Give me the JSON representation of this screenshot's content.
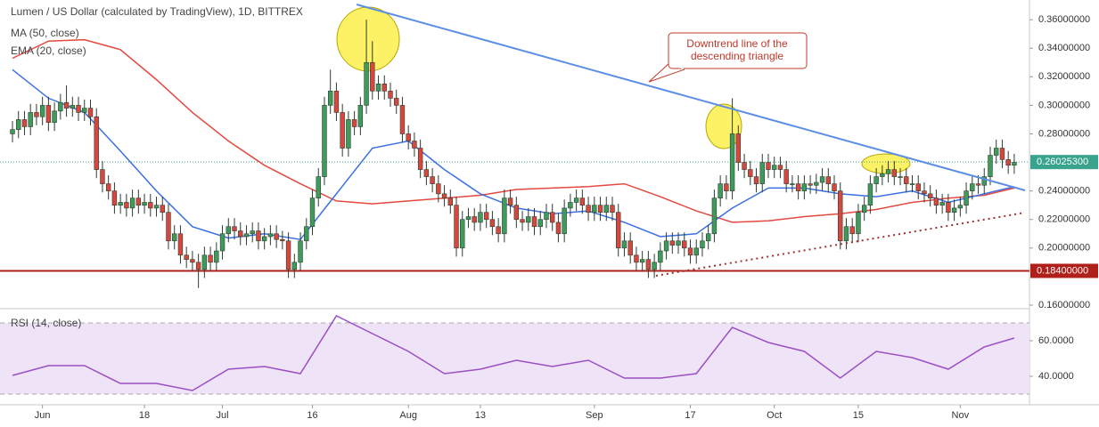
{
  "chart_data": [
    {
      "type": "candlestick",
      "title": "Lumen / US Dollar (calculated by TradingView), 1D, BITTREX",
      "categories": [
        null,
        null,
        null,
        null,
        null,
        "Jun",
        null,
        null,
        null,
        null,
        null,
        null,
        null,
        null,
        null,
        null,
        null,
        null,
        null,
        null,
        null,
        null,
        "18",
        null,
        null,
        null,
        null,
        null,
        null,
        null,
        null,
        null,
        null,
        null,
        null,
        "Jul",
        null,
        null,
        null,
        null,
        null,
        null,
        null,
        null,
        null,
        null,
        null,
        null,
        null,
        null,
        "16",
        null,
        null,
        null,
        null,
        null,
        null,
        null,
        null,
        null,
        null,
        null,
        null,
        null,
        null,
        null,
        "Aug",
        null,
        null,
        null,
        null,
        null,
        null,
        null,
        null,
        null,
        null,
        null,
        "13",
        null,
        null,
        null,
        null,
        null,
        null,
        null,
        null,
        null,
        null,
        null,
        null,
        null,
        null,
        null,
        null,
        null,
        null,
        "Sep",
        null,
        null,
        null,
        null,
        null,
        null,
        null,
        null,
        null,
        null,
        null,
        null,
        null,
        null,
        null,
        "17",
        null,
        null,
        null,
        null,
        null,
        null,
        null,
        null,
        null,
        null,
        null,
        null,
        null,
        "Oct",
        null,
        null,
        null,
        null,
        null,
        null,
        null,
        null,
        null,
        null,
        null,
        null,
        null,
        "15",
        null,
        null,
        null,
        null,
        null,
        null,
        null,
        null,
        null,
        null,
        null,
        null,
        null,
        null,
        null,
        null,
        "Nov",
        null,
        null,
        null,
        null,
        null,
        null,
        null,
        null,
        null
      ],
      "open": [
        0.28,
        0.283,
        0.29,
        0.285,
        0.295,
        0.292,
        0.3,
        0.288,
        0.296,
        0.302,
        0.298,
        0.3,
        0.295,
        0.298,
        0.292,
        0.255,
        0.245,
        0.24,
        0.23,
        0.232,
        0.228,
        0.235,
        0.23,
        0.232,
        0.228,
        0.23,
        0.225,
        0.205,
        0.21,
        0.195,
        0.192,
        0.19,
        0.185,
        0.195,
        0.19,
        0.198,
        0.21,
        0.215,
        0.212,
        0.208,
        0.21,
        0.212,
        0.205,
        0.208,
        0.21,
        0.206,
        0.205,
        0.185,
        0.19,
        0.205,
        0.215,
        0.235,
        0.25,
        0.3,
        0.31,
        0.295,
        0.27,
        0.29,
        0.285,
        0.3,
        0.33,
        0.31,
        0.315,
        0.31,
        0.305,
        0.3,
        0.28,
        0.275,
        0.27,
        0.255,
        0.25,
        0.245,
        0.238,
        0.235,
        0.23,
        0.2,
        0.22,
        0.222,
        0.218,
        0.225,
        0.22,
        0.215,
        0.21,
        0.235,
        0.23,
        0.22,
        0.218,
        0.222,
        0.215,
        0.22,
        0.225,
        0.218,
        0.21,
        0.228,
        0.232,
        0.235,
        0.23,
        0.225,
        0.23,
        0.225,
        0.23,
        0.225,
        0.2,
        0.205,
        0.195,
        0.19,
        0.192,
        0.185,
        0.19,
        0.198,
        0.205,
        0.202,
        0.205,
        0.2,
        0.195,
        0.2,
        0.205,
        0.21,
        0.235,
        0.245,
        0.24,
        0.28,
        0.26,
        0.255,
        0.25,
        0.245,
        0.26,
        0.255,
        0.258,
        0.255,
        0.245,
        0.245,
        0.24,
        0.245,
        0.244,
        0.246,
        0.25,
        0.245,
        0.24,
        0.205,
        0.215,
        0.21,
        0.225,
        0.23,
        0.245,
        0.25,
        0.252,
        0.255,
        0.25,
        0.25,
        0.245,
        0.245,
        0.24,
        0.238,
        0.235,
        0.23,
        0.232,
        0.225,
        0.228,
        0.23,
        0.24,
        0.245,
        0.244,
        0.25,
        0.265,
        0.27,
        0.262,
        0.258
      ],
      "high": [
        0.289,
        0.296,
        0.296,
        0.301,
        0.301,
        0.306,
        0.306,
        0.302,
        0.308,
        0.314,
        0.306,
        0.306,
        0.304,
        0.304,
        0.298,
        0.261,
        0.251,
        0.246,
        0.238,
        0.238,
        0.241,
        0.241,
        0.238,
        0.238,
        0.236,
        0.236,
        0.231,
        0.216,
        0.216,
        0.201,
        0.198,
        0.196,
        0.201,
        0.201,
        0.204,
        0.216,
        0.221,
        0.221,
        0.218,
        0.216,
        0.218,
        0.218,
        0.214,
        0.216,
        0.216,
        0.212,
        0.211,
        0.196,
        0.211,
        0.221,
        0.241,
        0.256,
        0.306,
        0.325,
        0.316,
        0.301,
        0.296,
        0.296,
        0.306,
        0.36,
        0.345,
        0.321,
        0.321,
        0.316,
        0.311,
        0.306,
        0.286,
        0.281,
        0.276,
        0.261,
        0.256,
        0.251,
        0.244,
        0.241,
        0.236,
        0.226,
        0.228,
        0.228,
        0.231,
        0.231,
        0.226,
        0.221,
        0.241,
        0.241,
        0.236,
        0.226,
        0.228,
        0.228,
        0.226,
        0.231,
        0.231,
        0.224,
        0.234,
        0.238,
        0.241,
        0.241,
        0.236,
        0.236,
        0.236,
        0.236,
        0.236,
        0.231,
        0.211,
        0.211,
        0.201,
        0.198,
        0.198,
        0.196,
        0.204,
        0.211,
        0.211,
        0.211,
        0.211,
        0.206,
        0.206,
        0.211,
        0.216,
        0.241,
        0.251,
        0.251,
        0.305,
        0.286,
        0.266,
        0.261,
        0.256,
        0.266,
        0.266,
        0.264,
        0.264,
        0.261,
        0.251,
        0.251,
        0.251,
        0.251,
        0.252,
        0.256,
        0.256,
        0.251,
        0.246,
        0.221,
        0.221,
        0.231,
        0.236,
        0.251,
        0.256,
        0.258,
        0.261,
        0.261,
        0.256,
        0.256,
        0.251,
        0.251,
        0.246,
        0.244,
        0.241,
        0.238,
        0.238,
        0.234,
        0.236,
        0.246,
        0.251,
        0.251,
        0.256,
        0.271,
        0.276,
        0.276,
        0.268,
        0.266
      ],
      "low": [
        0.274,
        0.277,
        0.279,
        0.279,
        0.286,
        0.286,
        0.282,
        0.282,
        0.29,
        0.292,
        0.292,
        0.289,
        0.289,
        0.286,
        0.249,
        0.239,
        0.234,
        0.224,
        0.224,
        0.222,
        0.222,
        0.224,
        0.224,
        0.222,
        0.222,
        0.219,
        0.199,
        0.199,
        0.189,
        0.186,
        0.184,
        0.172,
        0.179,
        0.184,
        0.184,
        0.192,
        0.204,
        0.206,
        0.202,
        0.202,
        0.204,
        0.199,
        0.199,
        0.202,
        0.2,
        0.199,
        0.179,
        0.179,
        0.184,
        0.199,
        0.209,
        0.229,
        0.244,
        0.294,
        0.289,
        0.264,
        0.264,
        0.279,
        0.279,
        0.294,
        0.304,
        0.304,
        0.304,
        0.299,
        0.294,
        0.274,
        0.269,
        0.264,
        0.249,
        0.244,
        0.239,
        0.232,
        0.229,
        0.224,
        0.194,
        0.194,
        0.214,
        0.212,
        0.212,
        0.214,
        0.209,
        0.204,
        0.204,
        0.224,
        0.214,
        0.212,
        0.212,
        0.209,
        0.209,
        0.214,
        0.212,
        0.204,
        0.204,
        0.222,
        0.226,
        0.224,
        0.219,
        0.219,
        0.219,
        0.219,
        0.219,
        0.194,
        0.194,
        0.189,
        0.184,
        0.184,
        0.179,
        0.179,
        0.184,
        0.192,
        0.196,
        0.196,
        0.194,
        0.189,
        0.189,
        0.194,
        0.199,
        0.204,
        0.229,
        0.234,
        0.234,
        0.254,
        0.249,
        0.244,
        0.239,
        0.239,
        0.249,
        0.249,
        0.249,
        0.239,
        0.239,
        0.234,
        0.234,
        0.238,
        0.238,
        0.24,
        0.239,
        0.234,
        0.199,
        0.199,
        0.204,
        0.204,
        0.219,
        0.224,
        0.239,
        0.244,
        0.246,
        0.244,
        0.244,
        0.239,
        0.239,
        0.234,
        0.232,
        0.229,
        0.224,
        0.224,
        0.219,
        0.219,
        0.222,
        0.224,
        0.234,
        0.238,
        0.238,
        0.244,
        0.259,
        0.256,
        0.252,
        0.252
      ],
      "close": [
        0.283,
        0.29,
        0.285,
        0.295,
        0.292,
        0.3,
        0.288,
        0.296,
        0.302,
        0.298,
        0.3,
        0.295,
        0.298,
        0.292,
        0.255,
        0.245,
        0.24,
        0.23,
        0.232,
        0.228,
        0.235,
        0.23,
        0.232,
        0.228,
        0.23,
        0.225,
        0.205,
        0.21,
        0.195,
        0.192,
        0.19,
        0.185,
        0.195,
        0.19,
        0.198,
        0.21,
        0.215,
        0.212,
        0.208,
        0.21,
        0.212,
        0.205,
        0.208,
        0.21,
        0.206,
        0.205,
        0.185,
        0.19,
        0.205,
        0.215,
        0.235,
        0.25,
        0.3,
        0.31,
        0.295,
        0.27,
        0.29,
        0.285,
        0.3,
        0.33,
        0.31,
        0.315,
        0.31,
        0.305,
        0.3,
        0.28,
        0.275,
        0.27,
        0.255,
        0.25,
        0.245,
        0.238,
        0.235,
        0.23,
        0.2,
        0.22,
        0.222,
        0.218,
        0.225,
        0.22,
        0.215,
        0.21,
        0.235,
        0.23,
        0.22,
        0.218,
        0.222,
        0.215,
        0.22,
        0.225,
        0.218,
        0.21,
        0.228,
        0.232,
        0.235,
        0.23,
        0.225,
        0.23,
        0.225,
        0.23,
        0.225,
        0.2,
        0.205,
        0.195,
        0.19,
        0.192,
        0.185,
        0.19,
        0.198,
        0.205,
        0.202,
        0.205,
        0.2,
        0.195,
        0.2,
        0.205,
        0.21,
        0.235,
        0.245,
        0.24,
        0.28,
        0.26,
        0.255,
        0.25,
        0.245,
        0.26,
        0.255,
        0.258,
        0.255,
        0.245,
        0.245,
        0.24,
        0.245,
        0.244,
        0.246,
        0.25,
        0.245,
        0.24,
        0.205,
        0.215,
        0.21,
        0.225,
        0.23,
        0.245,
        0.25,
        0.252,
        0.255,
        0.25,
        0.25,
        0.245,
        0.245,
        0.24,
        0.238,
        0.235,
        0.23,
        0.232,
        0.225,
        0.228,
        0.23,
        0.24,
        0.245,
        0.244,
        0.25,
        0.265,
        0.27,
        0.262,
        0.258,
        0.26
      ],
      "up_color": "#3f9b5c",
      "down_color": "#d8473e",
      "series": [
        {
          "name": "MA (50, close)",
          "color": "#e5483f",
          "x": [
            0,
            6,
            12,
            18,
            24,
            30,
            36,
            42,
            48,
            54,
            60,
            66,
            72,
            78,
            84,
            90,
            96,
            102,
            108,
            114,
            120,
            126,
            132,
            138,
            144,
            150,
            156,
            162,
            167
          ],
          "values": [
            0.333,
            0.345,
            0.346,
            0.339,
            0.318,
            0.295,
            0.275,
            0.258,
            0.245,
            0.233,
            0.231,
            0.233,
            0.235,
            0.237,
            0.241,
            0.242,
            0.243,
            0.245,
            0.236,
            0.226,
            0.218,
            0.219,
            0.222,
            0.224,
            0.227,
            0.232,
            0.235,
            0.237,
            0.242
          ]
        },
        {
          "name": "EMA (20, close)",
          "color": "#3b6fe3",
          "x": [
            0,
            6,
            12,
            18,
            24,
            30,
            36,
            42,
            48,
            54,
            60,
            66,
            72,
            78,
            84,
            90,
            96,
            102,
            108,
            114,
            120,
            126,
            132,
            138,
            144,
            150,
            156,
            162,
            167
          ],
          "values": [
            0.325,
            0.305,
            0.295,
            0.268,
            0.24,
            0.215,
            0.207,
            0.21,
            0.206,
            0.238,
            0.27,
            0.275,
            0.255,
            0.238,
            0.228,
            0.224,
            0.226,
            0.218,
            0.208,
            0.21,
            0.228,
            0.242,
            0.242,
            0.238,
            0.236,
            0.24,
            0.232,
            0.238,
            0.243
          ]
        }
      ],
      "last_price": {
        "value": 0.260253,
        "label": "0.26025300",
        "color": "#3aa38e"
      },
      "support": {
        "value": 0.184,
        "label": "0.18400000",
        "color": "#b0201a"
      },
      "annotation": [
        "Downtrend line of the",
        "descending triangle"
      ],
      "ylim": [
        0.1575,
        0.3738
      ],
      "yticks": [
        {
          "value": 0.16,
          "label": "0.16000000"
        },
        {
          "value": 0.2,
          "label": "0.20000000"
        },
        {
          "value": 0.22,
          "label": "0.22000000"
        },
        {
          "value": 0.24,
          "label": "0.24000000"
        },
        {
          "value": 0.28,
          "label": "0.28000000"
        },
        {
          "value": 0.3,
          "label": "0.30000000"
        },
        {
          "value": 0.32,
          "label": "0.32000000"
        },
        {
          "value": 0.34,
          "label": "0.34000000"
        },
        {
          "value": 0.36,
          "label": "0.36000000"
        }
      ],
      "grid": false
    },
    {
      "type": "line",
      "series": [
        {
          "name": "RSI (14, close)",
          "color": "#9a4fc4",
          "x": [
            0,
            6,
            12,
            18,
            24,
            30,
            36,
            42,
            48,
            54,
            60,
            66,
            72,
            78,
            84,
            90,
            96,
            102,
            108,
            114,
            120,
            126,
            132,
            138,
            144,
            150,
            156,
            162,
            167
          ],
          "values": [
            40.5,
            46,
            46,
            36,
            36,
            32,
            44,
            45.5,
            41.5,
            74,
            64,
            54,
            41.5,
            44,
            49,
            45.5,
            49,
            39,
            39,
            41.5,
            67.5,
            59,
            54,
            39,
            54,
            50.5,
            44,
            56.5,
            61.5
          ]
        }
      ],
      "band": [
        30,
        70
      ],
      "band_color": "#efe3f7",
      "ylim": [
        24,
        77.5
      ],
      "yticks": [
        {
          "value": 40,
          "label": "40.0000"
        },
        {
          "value": 60,
          "label": "60.0000"
        }
      ]
    }
  ]
}
